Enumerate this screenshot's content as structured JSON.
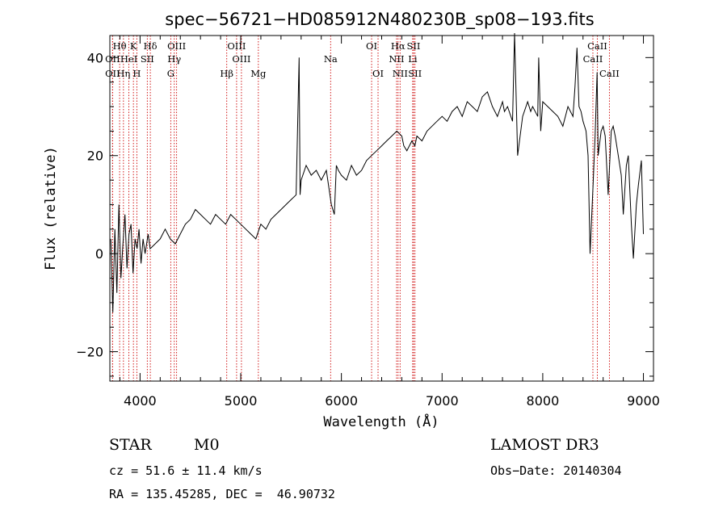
{
  "chart_data": {
    "type": "line",
    "title": "spec−56721−HD085912N480230B_sp08−193.fits",
    "xlabel": "Wavelength (Å)",
    "ylabel": "Flux (relative)",
    "xlim": [
      3700,
      9100
    ],
    "ylim": [
      -26,
      44.5
    ],
    "x_ticks": [
      4000,
      5000,
      6000,
      7000,
      8000,
      9000
    ],
    "y_ticks": [
      -20,
      0,
      20,
      40
    ],
    "y_tick_labels": [
      "−20",
      "0",
      "20",
      "40"
    ],
    "x_tick_labels": [
      "4000",
      "5000",
      "6000",
      "7000",
      "8000",
      "9000"
    ],
    "grid": false,
    "line_color": "#000000",
    "marker_color": "#cc0000",
    "series": [
      {
        "x": [
          3710,
          3730,
          3750,
          3770,
          3790,
          3810,
          3830,
          3850,
          3870,
          3890,
          3910,
          3930,
          3950,
          3970,
          3990,
          4010,
          4030,
          4050,
          4080,
          4100,
          4150,
          4200,
          4250,
          4300,
          4350,
          4400,
          4450,
          4500,
          4550,
          4600,
          4650,
          4700,
          4750,
          4800,
          4850,
          4900,
          4950,
          5000,
          5050,
          5100,
          5150,
          5200,
          5250,
          5300,
          5350,
          5400,
          5450,
          5500,
          5550,
          5580,
          5590,
          5600,
          5650,
          5700,
          5750,
          5800,
          5850,
          5900,
          5930,
          5950,
          5970,
          6000,
          6050,
          6100,
          6150,
          6200,
          6250,
          6300,
          6350,
          6400,
          6450,
          6500,
          6550,
          6600,
          6620,
          6650,
          6700,
          6730,
          6750,
          6800,
          6850,
          6900,
          6950,
          7000,
          7050,
          7100,
          7150,
          7200,
          7250,
          7300,
          7350,
          7400,
          7450,
          7500,
          7550,
          7600,
          7620,
          7650,
          7700,
          7720,
          7750,
          7800,
          7850,
          7880,
          7900,
          7950,
          7960,
          7980,
          8000,
          8050,
          8100,
          8150,
          8200,
          8250,
          8300,
          8320,
          8340,
          8360,
          8380,
          8400,
          8430,
          8450,
          8470,
          8500,
          8520,
          8540,
          8550,
          8580,
          8600,
          8620,
          8650,
          8680,
          8700,
          8720,
          8750,
          8780,
          8800,
          8830,
          8850,
          8880,
          8900,
          8930,
          8950,
          8980,
          9000
        ],
        "y": [
          3,
          -12,
          5,
          -8,
          10,
          -5,
          2,
          8,
          -3,
          4,
          6,
          -4,
          3,
          1,
          5,
          -2,
          3,
          0,
          4,
          1,
          2,
          3,
          5,
          3,
          2,
          4,
          6,
          7,
          9,
          8,
          7,
          6,
          8,
          7,
          6,
          8,
          7,
          6,
          5,
          4,
          3,
          6,
          5,
          7,
          8,
          9,
          10,
          11,
          12,
          40,
          12,
          15,
          18,
          16,
          17,
          15,
          17,
          10,
          8,
          18,
          17,
          16,
          15,
          18,
          16,
          17,
          19,
          20,
          21,
          22,
          23,
          24,
          25,
          24,
          22,
          21,
          23,
          22,
          24,
          23,
          25,
          26,
          27,
          28,
          27,
          29,
          30,
          28,
          31,
          30,
          29,
          32,
          33,
          30,
          28,
          31,
          29,
          30,
          27,
          45,
          20,
          28,
          31,
          29,
          30,
          28,
          40,
          25,
          31,
          30,
          29,
          28,
          26,
          30,
          28,
          34,
          42,
          30,
          29,
          27,
          25,
          20,
          0,
          14,
          24,
          37,
          20,
          25,
          26,
          24,
          12,
          25,
          26,
          24,
          20,
          16,
          8,
          18,
          20,
          6,
          -1,
          10,
          14,
          19,
          4
        ]
      }
    ],
    "spectral_lines": [
      {
        "label": "Hθ",
        "x": 3797,
        "row": 0
      },
      {
        "label": "K",
        "x": 3934,
        "row": 0
      },
      {
        "label": "Hδ",
        "x": 4102,
        "row": 0
      },
      {
        "label": "OIII",
        "x": 4363,
        "row": 0
      },
      {
        "label": "OIII",
        "x": 4959,
        "row": 0
      },
      {
        "label": "OI",
        "x": 6300,
        "row": 0
      },
      {
        "label": "Hα",
        "x": 6563,
        "row": 0
      },
      {
        "label": "SII",
        "x": 6717,
        "row": 0
      },
      {
        "label": "CaII",
        "x": 8542,
        "row": 0
      },
      {
        "label": "OII",
        "x": 3727,
        "row": 1
      },
      {
        "label": "HeI",
        "x": 3889,
        "row": 1
      },
      {
        "label": "SII",
        "x": 4072,
        "row": 1
      },
      {
        "label": "Hγ",
        "x": 4340,
        "row": 1
      },
      {
        "label": "OIII",
        "x": 5007,
        "row": 1
      },
      {
        "label": "Na",
        "x": 5893,
        "row": 1
      },
      {
        "label": "NII",
        "x": 6548,
        "row": 1
      },
      {
        "label": "Li",
        "x": 6708,
        "row": 1
      },
      {
        "label": "CaII",
        "x": 8498,
        "row": 1
      },
      {
        "label": "OII",
        "x": 3727,
        "row": 2
      },
      {
        "label": "Hη",
        "x": 3835,
        "row": 2
      },
      {
        "label": "H",
        "x": 3968,
        "row": 2
      },
      {
        "label": "G",
        "x": 4305,
        "row": 2
      },
      {
        "label": "Hβ",
        "x": 4861,
        "row": 2
      },
      {
        "label": "Mg",
        "x": 5175,
        "row": 2
      },
      {
        "label": "OI",
        "x": 6364,
        "row": 2
      },
      {
        "label": "NII",
        "x": 6583,
        "row": 2
      },
      {
        "label": "SII",
        "x": 6731,
        "row": 2
      },
      {
        "label": "CaII",
        "x": 8662,
        "row": 2
      }
    ]
  },
  "info": {
    "object_class": "STAR",
    "subclass": "M0",
    "survey": "LAMOST DR3",
    "cz": "cz = 51.6 ± 11.4 km/s",
    "obs_date": "Obs−Date: 20140304",
    "coords": "RA = 135.45285, DEC =  46.90732"
  }
}
